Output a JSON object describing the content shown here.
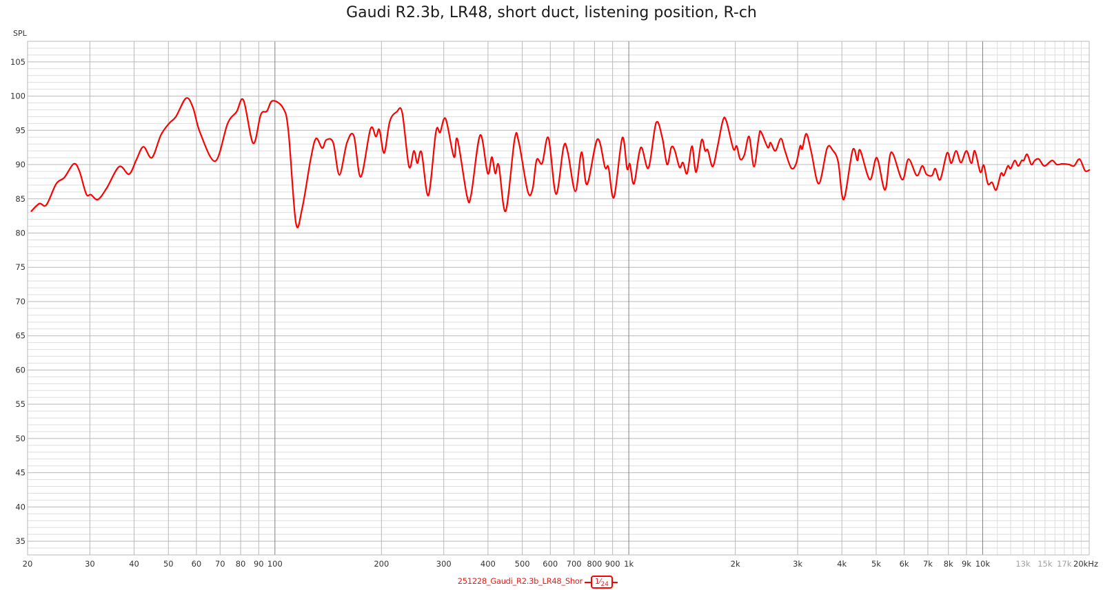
{
  "chart_data": {
    "type": "line",
    "title": "Gaudi R2.3b, LR48, short duct, listening position, R-ch",
    "xlabel": "Hz",
    "ylabel": "SPL",
    "xscale": "log",
    "xlim": [
      20,
      20000
    ],
    "ylim": [
      33,
      108
    ],
    "grid": true,
    "legend_position": "bottom-center",
    "y_ticks": [
      35,
      40,
      45,
      50,
      55,
      60,
      65,
      70,
      75,
      80,
      85,
      90,
      95,
      100,
      105
    ],
    "x_ticks": [
      {
        "value": 20,
        "label": "20",
        "muted": false
      },
      {
        "value": 30,
        "label": "30",
        "muted": false
      },
      {
        "value": 40,
        "label": "40",
        "muted": false
      },
      {
        "value": 50,
        "label": "50",
        "muted": false
      },
      {
        "value": 60,
        "label": "60",
        "muted": false
      },
      {
        "value": 70,
        "label": "70",
        "muted": false
      },
      {
        "value": 80,
        "label": "80",
        "muted": false
      },
      {
        "value": 90,
        "label": "90",
        "muted": false
      },
      {
        "value": 100,
        "label": "100",
        "muted": false
      },
      {
        "value": 200,
        "label": "200",
        "muted": false
      },
      {
        "value": 300,
        "label": "300",
        "muted": false
      },
      {
        "value": 400,
        "label": "400",
        "muted": false
      },
      {
        "value": 500,
        "label": "500",
        "muted": false
      },
      {
        "value": 600,
        "label": "600",
        "muted": false
      },
      {
        "value": 700,
        "label": "700",
        "muted": false
      },
      {
        "value": 800,
        "label": "800",
        "muted": false
      },
      {
        "value": 900,
        "label": "900",
        "muted": false
      },
      {
        "value": 1000,
        "label": "1k",
        "muted": false
      },
      {
        "value": 2000,
        "label": "2k",
        "muted": false
      },
      {
        "value": 3000,
        "label": "3k",
        "muted": false
      },
      {
        "value": 4000,
        "label": "4k",
        "muted": false
      },
      {
        "value": 5000,
        "label": "5k",
        "muted": false
      },
      {
        "value": 6000,
        "label": "6k",
        "muted": false
      },
      {
        "value": 7000,
        "label": "7k",
        "muted": false
      },
      {
        "value": 8000,
        "label": "8k",
        "muted": false
      },
      {
        "value": 9000,
        "label": "9k",
        "muted": false
      },
      {
        "value": 10000,
        "label": "10k",
        "muted": false
      },
      {
        "value": 13000,
        "label": "13k",
        "muted": true
      },
      {
        "value": 15000,
        "label": "15k",
        "muted": true
      },
      {
        "value": 17000,
        "label": "17k",
        "muted": true
      },
      {
        "value": 20000,
        "label": "20kHz",
        "muted": false
      }
    ],
    "series": [
      {
        "name": "251228_Gaudi_R2.3b_LR48_Shor",
        "smoothing": "1/24",
        "color": "#ff0000",
        "x": [
          20.5,
          21.6,
          22.6,
          24.1,
          25.4,
          27.0,
          28.0,
          29.3,
          30.2,
          31.6,
          33.5,
          36.3,
          38.7,
          40.6,
          42.5,
          44.9,
          47.6,
          50.2,
          52.5,
          56.1,
          58.7,
          61.4,
          67.8,
          73.5,
          77.9,
          81.5,
          86.8,
          91.2,
          94.9,
          98.4,
          105.3,
          109.1,
          114.6,
          119.4,
          126.0,
          130.6,
          136.0,
          139.7,
          146.1,
          152.1,
          159.8,
          167.1,
          174.8,
          186.2,
          192.9,
          197.3,
          203.6,
          211.1,
          220.8,
          228.9,
          239.3,
          247.0,
          252.6,
          259.5,
          271.4,
          285.1,
          292.9,
          303.6,
          320.5,
          327.8,
          348.9,
          358.5,
          380.1,
          399.3,
          410.2,
          419.5,
          429.0,
          448.7,
          475.7,
          488.7,
          518.1,
          534.6,
          549.2,
          569.3,
          592.7,
          622.7,
          654.3,
          672.2,
          706.2,
          735.3,
          762.2,
          815.3,
          856.6,
          876.0,
          908.1,
          958.4,
          988.9,
          1006.8,
          1034.3,
          1081.5,
          1136.5,
          1194.2,
          1243.6,
          1283.1,
          1318.1,
          1348.0,
          1390.9,
          1422.7,
          1461.6,
          1508.3,
          1549.4,
          1606.1,
          1642.5,
          1672.2,
          1725.8,
          1780.8,
          1845.9,
          1887.7,
          1974.4,
          2018.1,
          2063.9,
          2120.3,
          2188.2,
          2258.0,
          2330.0,
          2362,
          2470,
          2515,
          2595,
          2690,
          2763,
          2877,
          2969,
          3050,
          3091,
          3175,
          3276,
          3443,
          3634,
          3767,
          3905,
          4048,
          4290,
          4427,
          4506,
          4800,
          5022,
          5298,
          5516,
          5925,
          6170,
          6512,
          6750,
          6934,
          7188,
          7350,
          7585,
          7933,
          8150,
          8411,
          8680,
          8998,
          9290,
          9500,
          9845,
          10069,
          10344,
          10625,
          10915,
          11264,
          11468,
          11780,
          11993,
          12320,
          12600,
          12886,
          13060,
          13355,
          13720,
          14030,
          14413,
          14940,
          15697,
          16200,
          16790,
          17560,
          18120,
          18780,
          19465,
          20000
        ],
        "y": [
          83.2,
          84.3,
          84.1,
          87.2,
          88.1,
          90.1,
          89.1,
          85.7,
          85.6,
          84.9,
          86.6,
          89.7,
          88.6,
          90.7,
          92.6,
          91.0,
          94.3,
          96.0,
          97.0,
          99.7,
          98.3,
          94.7,
          90.5,
          96.0,
          97.7,
          99.4,
          93.1,
          97.3,
          97.8,
          99.3,
          98.3,
          95.0,
          81.5,
          83.6,
          90.6,
          93.8,
          92.4,
          93.6,
          93.2,
          88.5,
          93.2,
          94.2,
          88.2,
          95.2,
          94.1,
          95.1,
          91.7,
          96.3,
          97.7,
          97.6,
          89.7,
          92.0,
          90.2,
          91.8,
          85.5,
          94.8,
          94.7,
          96.7,
          91.1,
          93.7,
          85.4,
          85.6,
          94.3,
          88.7,
          91.1,
          88.7,
          89.9,
          83.2,
          93.7,
          93.3,
          86.1,
          86.4,
          90.7,
          90.2,
          93.9,
          85.7,
          92.6,
          91.8,
          86.1,
          91.8,
          87.1,
          93.7,
          89.6,
          89.6,
          85.2,
          93.9,
          89.4,
          90.1,
          87.2,
          92.5,
          89.5,
          96.1,
          93.9,
          90.0,
          92.5,
          92.1,
          89.6,
          90.3,
          88.7,
          92.7,
          88.9,
          93.6,
          92.0,
          92.1,
          89.7,
          92.6,
          96.5,
          96.3,
          92.3,
          92.7,
          90.8,
          91.4,
          94.1,
          89.7,
          94.0,
          94.8,
          92.5,
          93.2,
          92.0,
          93.8,
          92.0,
          89.5,
          90.1,
          92.7,
          92.3,
          94.5,
          91.9,
          87.2,
          92.4,
          92.1,
          90.4,
          84.9,
          92.1,
          90.6,
          92.1,
          87.8,
          91.0,
          86.3,
          91.8,
          87.8,
          90.8,
          88.4,
          89.8,
          88.6,
          88.4,
          89.4,
          87.8,
          91.7,
          90.2,
          92.0,
          90.3,
          92.0,
          90.2,
          92.0,
          88.9,
          89.9,
          87.2,
          87.4,
          86.3,
          88.7,
          88.4,
          89.8,
          89.4,
          90.6,
          89.8,
          90.6,
          90.6,
          91.5,
          90.0,
          90.6,
          90.8,
          89.8,
          90.6,
          90.0,
          90.1,
          90.0,
          89.8,
          90.8,
          89.1,
          89.2
        ]
      }
    ]
  },
  "legend": {
    "label": "251228_Gaudi_R2.3b_LR48_Shor",
    "smoothing_num": "1",
    "smoothing_den": "24"
  },
  "colors": {
    "curve": "#ff0000",
    "grid_major": "#b8b8b8",
    "grid_minor": "#dedede",
    "grid_decade": "#808080",
    "legend_text": "#e02020"
  }
}
